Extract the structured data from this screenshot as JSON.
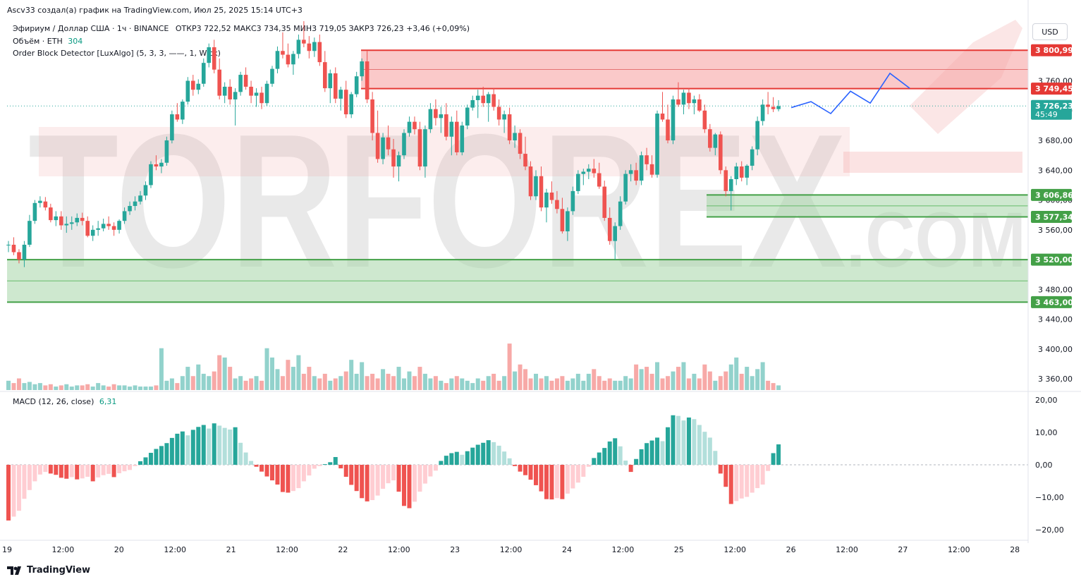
{
  "header": {
    "attribution": "Ascv33 создал(а) график на TradingView.com, Июл 25, 2025 15:14 UTC+3",
    "symbol_line": "Эфириум / Доллар США · 1ч · BINANCE",
    "ohlc_text": "ОТКР3 722,52   МАКС3 734,35   МИН3 719,05   ЗАКР3 726,23   +3,46 (+0,09%)",
    "volume_label": "Объём · ETH",
    "volume_value": "304",
    "indicator_label": "Order Block Detector [LuxAlgo] (5, 3, 3, ——, 1, Wick)",
    "currency_button": "USD",
    "brand": "TradingView"
  },
  "watermark": {
    "text": "TORFOREX",
    "suffix": ".COM"
  },
  "colors": {
    "up": "#26a69a",
    "down": "#ef5350",
    "macd_up_strong": "#26a69a",
    "macd_up_weak": "#b2dfdb",
    "macd_down_strong": "#ef5350",
    "macd_down_weak": "#ffcdd2",
    "zone_red": "#f7a5a5",
    "zone_green": "#a5d6a7",
    "projection": "#2962ff"
  },
  "chart_data": [
    {
      "type": "candlestick",
      "title": "Эфириум / Доллар США · 1ч · BINANCE",
      "yticks": [
        "3 760,00",
        "3 720,00",
        "3 680,00",
        "3 640,00",
        "3 600,00",
        "3 560,00",
        "3 520,00",
        "3 480,00",
        "3 440,00",
        "3 400,00",
        "3 360,00"
      ],
      "ylim": [
        3345,
        3840
      ],
      "xticks": [
        "19",
        "12:00",
        "20",
        "12:00",
        "21",
        "12:00",
        "22",
        "12:00",
        "23",
        "12:00",
        "24",
        "12:00",
        "25",
        "12:00",
        "26",
        "12:00",
        "27",
        "12:00",
        "28"
      ],
      "price_labels": [
        {
          "value": 3800.99,
          "text": "3 800,99",
          "kind": "red"
        },
        {
          "value": 3749.45,
          "text": "3 749,45",
          "kind": "red"
        },
        {
          "value": 3726.23,
          "text": "3 726,23",
          "sub": "45:49",
          "kind": "current"
        },
        {
          "value": 3606.86,
          "text": "3 606,86",
          "kind": "green"
        },
        {
          "value": 3577.34,
          "text": "3 577,34",
          "kind": "green"
        },
        {
          "value": 3520.0,
          "text": "3 520,00",
          "kind": "green"
        },
        {
          "value": 3463.0,
          "text": "3 463,00",
          "kind": "green"
        }
      ],
      "zones": [
        {
          "kind": "bearish",
          "from": 3749.45,
          "to": 3800.99,
          "mid": 3775.2
        },
        {
          "kind": "bullish",
          "from": 3577.34,
          "to": 3606.86,
          "mid": 3592.1
        },
        {
          "kind": "bullish",
          "from": 3463.0,
          "to": 3520.0,
          "mid": 3491.5
        }
      ],
      "projection_path": [
        3724,
        3732,
        3716,
        3746,
        3730,
        3770,
        3750
      ],
      "candles": [
        [
          3540,
          3545,
          3530,
          3540
        ],
        [
          3540,
          3550,
          3526,
          3530
        ],
        [
          3530,
          3534,
          3515,
          3520
        ],
        [
          3520,
          3545,
          3510,
          3540
        ],
        [
          3540,
          3580,
          3537,
          3572
        ],
        [
          3572,
          3600,
          3568,
          3596
        ],
        [
          3596,
          3605,
          3590,
          3599
        ],
        [
          3598,
          3604,
          3586,
          3590
        ],
        [
          3590,
          3595,
          3570,
          3573
        ],
        [
          3573,
          3585,
          3565,
          3578
        ],
        [
          3578,
          3585,
          3560,
          3566
        ],
        [
          3566,
          3578,
          3556,
          3568
        ],
        [
          3568,
          3578,
          3560,
          3570
        ],
        [
          3570,
          3582,
          3565,
          3576
        ],
        [
          3576,
          3583,
          3566,
          3572
        ],
        [
          3572,
          3578,
          3550,
          3552
        ],
        [
          3552,
          3566,
          3545,
          3560
        ],
        [
          3560,
          3572,
          3552,
          3562
        ],
        [
          3562,
          3575,
          3558,
          3568
        ],
        [
          3568,
          3578,
          3560,
          3565
        ],
        [
          3565,
          3570,
          3552,
          3560
        ],
        [
          3560,
          3574,
          3555,
          3572
        ],
        [
          3572,
          3590,
          3568,
          3585
        ],
        [
          3585,
          3598,
          3580,
          3592
        ],
        [
          3592,
          3605,
          3586,
          3598
        ],
        [
          3598,
          3612,
          3594,
          3606
        ],
        [
          3606,
          3625,
          3600,
          3620
        ],
        [
          3620,
          3652,
          3616,
          3648
        ],
        [
          3648,
          3660,
          3640,
          3645
        ],
        [
          3645,
          3655,
          3636,
          3650
        ],
        [
          3650,
          3685,
          3646,
          3680
        ],
        [
          3680,
          3720,
          3676,
          3715
        ],
        [
          3715,
          3730,
          3705,
          3708
        ],
        [
          3708,
          3735,
          3702,
          3732
        ],
        [
          3732,
          3765,
          3728,
          3760
        ],
        [
          3760,
          3768,
          3740,
          3748
        ],
        [
          3748,
          3762,
          3742,
          3756
        ],
        [
          3756,
          3790,
          3752,
          3784
        ],
        [
          3784,
          3810,
          3778,
          3805
        ],
        [
          3805,
          3815,
          3770,
          3775
        ],
        [
          3775,
          3790,
          3735,
          3740
        ],
        [
          3740,
          3758,
          3730,
          3752
        ],
        [
          3752,
          3762,
          3728,
          3735
        ],
        [
          3735,
          3750,
          3700,
          3745
        ],
        [
          3745,
          3772,
          3740,
          3768
        ],
        [
          3768,
          3778,
          3748,
          3752
        ],
        [
          3752,
          3760,
          3730,
          3740
        ],
        [
          3740,
          3750,
          3725,
          3744
        ],
        [
          3744,
          3752,
          3722,
          3730
        ],
        [
          3730,
          3760,
          3726,
          3756
        ],
        [
          3756,
          3780,
          3752,
          3776
        ],
        [
          3776,
          3806,
          3770,
          3800
        ],
        [
          3800,
          3825,
          3790,
          3795
        ],
        [
          3795,
          3810,
          3778,
          3782
        ],
        [
          3782,
          3800,
          3768,
          3796
        ],
        [
          3796,
          3822,
          3790,
          3815
        ],
        [
          3815,
          3840,
          3805,
          3810
        ],
        [
          3810,
          3820,
          3790,
          3800
        ],
        [
          3800,
          3818,
          3792,
          3812
        ],
        [
          3812,
          3822,
          3780,
          3785
        ],
        [
          3785,
          3800,
          3745,
          3750
        ],
        [
          3750,
          3775,
          3730,
          3770
        ],
        [
          3770,
          3778,
          3730,
          3736
        ],
        [
          3736,
          3752,
          3720,
          3748
        ],
        [
          3748,
          3760,
          3710,
          3715
        ],
        [
          3715,
          3745,
          3710,
          3742
        ],
        [
          3742,
          3772,
          3738,
          3766
        ],
        [
          3766,
          3790,
          3760,
          3786
        ],
        [
          3786,
          3800,
          3730,
          3735
        ],
        [
          3735,
          3745,
          3680,
          3690
        ],
        [
          3690,
          3720,
          3650,
          3655
        ],
        [
          3655,
          3690,
          3648,
          3684
        ],
        [
          3684,
          3700,
          3660,
          3668
        ],
        [
          3668,
          3682,
          3630,
          3645
        ],
        [
          3645,
          3665,
          3625,
          3660
        ],
        [
          3660,
          3695,
          3655,
          3690
        ],
        [
          3690,
          3712,
          3685,
          3705
        ],
        [
          3705,
          3712,
          3688,
          3695
        ],
        [
          3695,
          3705,
          3640,
          3645
        ],
        [
          3645,
          3700,
          3630,
          3695
        ],
        [
          3695,
          3730,
          3690,
          3722
        ],
        [
          3722,
          3735,
          3700,
          3710
        ],
        [
          3710,
          3725,
          3690,
          3715
        ],
        [
          3715,
          3730,
          3680,
          3685
        ],
        [
          3685,
          3712,
          3660,
          3705
        ],
        [
          3705,
          3720,
          3660,
          3664
        ],
        [
          3664,
          3705,
          3660,
          3700
        ],
        [
          3700,
          3728,
          3695,
          3724
        ],
        [
          3724,
          3740,
          3720,
          3734
        ],
        [
          3734,
          3748,
          3710,
          3740
        ],
        [
          3740,
          3752,
          3725,
          3730
        ],
        [
          3730,
          3745,
          3705,
          3742
        ],
        [
          3742,
          3750,
          3720,
          3725
        ],
        [
          3725,
          3735,
          3700,
          3708
        ],
        [
          3708,
          3720,
          3690,
          3715
        ],
        [
          3715,
          3724,
          3675,
          3680
        ],
        [
          3680,
          3700,
          3670,
          3690
        ],
        [
          3690,
          3695,
          3655,
          3662
        ],
        [
          3662,
          3685,
          3640,
          3645
        ],
        [
          3645,
          3652,
          3600,
          3605
        ],
        [
          3605,
          3640,
          3600,
          3632
        ],
        [
          3632,
          3645,
          3585,
          3590
        ],
        [
          3590,
          3615,
          3570,
          3610
        ],
        [
          3610,
          3625,
          3595,
          3600
        ],
        [
          3600,
          3612,
          3582,
          3588
        ],
        [
          3588,
          3603,
          3555,
          3558
        ],
        [
          3558,
          3590,
          3545,
          3585
        ],
        [
          3585,
          3618,
          3580,
          3612
        ],
        [
          3612,
          3640,
          3608,
          3635
        ],
        [
          3635,
          3642,
          3620,
          3638
        ],
        [
          3638,
          3648,
          3628,
          3642
        ],
        [
          3642,
          3655,
          3630,
          3636
        ],
        [
          3636,
          3650,
          3615,
          3618
        ],
        [
          3618,
          3626,
          3572,
          3576
        ],
        [
          3576,
          3590,
          3540,
          3545
        ],
        [
          3545,
          3570,
          3520,
          3565
        ],
        [
          3565,
          3605,
          3560,
          3598
        ],
        [
          3598,
          3640,
          3594,
          3635
        ],
        [
          3635,
          3648,
          3625,
          3640
        ],
        [
          3640,
          3650,
          3620,
          3626
        ],
        [
          3626,
          3665,
          3620,
          3660
        ],
        [
          3660,
          3670,
          3640,
          3648
        ],
        [
          3648,
          3660,
          3630,
          3634
        ],
        [
          3634,
          3720,
          3630,
          3716
        ],
        [
          3716,
          3745,
          3705,
          3708
        ],
        [
          3708,
          3728,
          3676,
          3680
        ],
        [
          3680,
          3740,
          3675,
          3735
        ],
        [
          3735,
          3758,
          3725,
          3728
        ],
        [
          3728,
          3748,
          3715,
          3744
        ],
        [
          3744,
          3750,
          3722,
          3730
        ],
        [
          3730,
          3740,
          3715,
          3735
        ],
        [
          3735,
          3742,
          3718,
          3720
        ],
        [
          3720,
          3728,
          3690,
          3695
        ],
        [
          3695,
          3702,
          3665,
          3670
        ],
        [
          3670,
          3690,
          3660,
          3688
        ],
        [
          3688,
          3692,
          3635,
          3640
        ],
        [
          3640,
          3645,
          3605,
          3612
        ],
        [
          3612,
          3632,
          3586,
          3628
        ],
        [
          3628,
          3650,
          3620,
          3645
        ],
        [
          3645,
          3652,
          3625,
          3630
        ],
        [
          3630,
          3648,
          3620,
          3646
        ],
        [
          3646,
          3672,
          3640,
          3668
        ],
        [
          3668,
          3712,
          3660,
          3706
        ],
        [
          3706,
          3735,
          3700,
          3728
        ],
        [
          3728,
          3745,
          3715,
          3725
        ],
        [
          3725,
          3738,
          3718,
          3722
        ],
        [
          3722,
          3734,
          3719,
          3726
        ]
      ],
      "volume": {
        "label": "Объём · ETH",
        "last_value": "304",
        "bars": [
          8,
          6,
          10,
          6,
          7,
          5,
          6,
          4,
          5,
          3,
          4,
          5,
          3,
          4,
          4,
          5,
          3,
          6,
          4,
          3,
          5,
          4,
          4,
          3,
          4,
          3,
          3,
          3,
          4,
          36,
          8,
          10,
          6,
          12,
          20,
          12,
          22,
          14,
          12,
          16,
          30,
          28,
          20,
          10,
          12,
          8,
          10,
          12,
          8,
          36,
          28,
          18,
          12,
          26,
          20,
          30,
          14,
          20,
          12,
          10,
          14,
          8,
          10,
          12,
          16,
          26,
          14,
          24,
          12,
          14,
          10,
          18,
          14,
          12,
          20,
          10,
          16,
          12,
          20,
          14,
          10,
          12,
          8,
          6,
          10,
          12,
          10,
          8,
          6,
          10,
          8,
          12,
          14,
          8,
          12,
          40,
          16,
          22,
          18,
          10,
          14,
          10,
          12,
          8,
          10,
          12,
          8,
          10,
          14,
          8,
          14,
          18,
          12,
          8,
          10,
          8,
          8,
          12,
          10,
          22,
          18,
          20,
          14,
          24,
          10,
          12,
          16,
          20,
          24,
          10,
          14,
          10,
          22,
          16,
          8,
          12,
          16,
          22,
          28,
          14,
          20,
          12,
          18,
          24,
          8,
          6,
          4
        ],
        "ylim": [
          0,
          85
        ]
      }
    },
    {
      "type": "histogram",
      "title": "MACD (12, 26, close)",
      "last_value": "6,31",
      "yticks": [
        "20,00",
        "10,00",
        "0,00",
        "−10,00",
        "−20,00"
      ],
      "ylim": [
        -22,
        22
      ],
      "values": [
        -17.2,
        -16.0,
        -14.2,
        -10.5,
        -7.8,
        -5.1,
        -3.0,
        -2.2,
        -2.7,
        -3.1,
        -4.0,
        -4.3,
        -3.8,
        -4.5,
        -4.2,
        -3.7,
        -5.1,
        -3.9,
        -3.2,
        -2.8,
        -3.8,
        -2.6,
        -2.0,
        -1.6,
        -0.4,
        1.1,
        2.3,
        3.7,
        4.9,
        5.8,
        6.7,
        8.3,
        9.6,
        10.3,
        9.1,
        10.8,
        11.7,
        12.3,
        11.2,
        12.8,
        12.1,
        11.4,
        10.9,
        11.6,
        6.8,
        3.8,
        1.2,
        -0.6,
        -2.1,
        -3.6,
        -4.8,
        -6.1,
        -8.4,
        -8.6,
        -8.1,
        -7.2,
        -5.1,
        -3.3,
        -1.2,
        -0.4,
        0.2,
        0.8,
        2.4,
        -1.1,
        -3.7,
        -6.2,
        -8.1,
        -10.3,
        -11.3,
        -10.9,
        -9.5,
        -7.4,
        -5.7,
        -4.8,
        -8.3,
        -12.7,
        -13.4,
        -11.4,
        -8.3,
        -5.8,
        -3.6,
        -1.8,
        1.2,
        2.8,
        3.6,
        4.0,
        3.1,
        4.2,
        5.3,
        6.2,
        6.8,
        7.6,
        7.0,
        5.9,
        4.1,
        2.0,
        -0.4,
        -2.1,
        -3.2,
        -4.6,
        -6.3,
        -8.2,
        -10.6,
        -10.7,
        -10.3,
        -10.6,
        -8.9,
        -7.3,
        -5.5,
        -3.7,
        -0.6,
        2.1,
        3.8,
        5.2,
        7.2,
        8.2,
        5.7,
        1.3,
        -2.2,
        1.8,
        4.8,
        6.7,
        7.5,
        8.4,
        7.3,
        11.6,
        15.3,
        15.1,
        13.7,
        14.6,
        14.1,
        12.3,
        10.2,
        8.4,
        4.3,
        -2.7,
        -6.8,
        -12.1,
        -11.2,
        -10.4,
        -9.9,
        -8.6,
        -7.2,
        -6.1,
        -1.9,
        3.6,
        6.31
      ]
    }
  ]
}
